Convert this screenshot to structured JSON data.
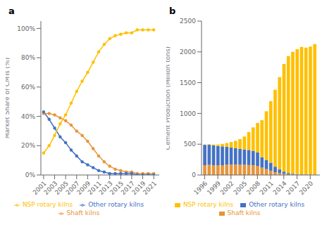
{
  "chart_data": [
    {
      "type": "line",
      "title": "a",
      "x": [
        2001,
        2002,
        2003,
        2004,
        2005,
        2006,
        2007,
        2008,
        2009,
        2010,
        2011,
        2012,
        2013,
        2014,
        2015,
        2016,
        2017,
        2018,
        2019,
        2020,
        2021
      ],
      "series": [
        {
          "name": "Shaft kilns",
          "color": "#E8943A",
          "marker": "circle",
          "values": [
            42,
            42,
            41,
            39,
            37,
            34,
            30,
            27,
            23,
            18,
            13,
            9,
            6,
            4,
            3,
            2,
            2,
            1,
            1,
            1,
            1
          ]
        },
        {
          "name": "Other rotary kilns",
          "color": "#4472C4",
          "marker": "circle",
          "values": [
            43,
            38,
            32,
            26,
            22,
            17,
            13,
            9,
            7,
            5,
            3,
            2,
            1,
            1,
            1,
            1,
            1,
            0,
            0,
            0,
            0
          ]
        },
        {
          "name": "NSP rotary kilns",
          "color": "#FFC000",
          "marker": "circle",
          "values": [
            15,
            20,
            27,
            35,
            41,
            49,
            57,
            64,
            70,
            77,
            84,
            89,
            93,
            95,
            96,
            97,
            97,
            99,
            99,
            99,
            99
          ]
        }
      ],
      "ylabel": "Market Share of CMTs (%)",
      "xlim": [
        2000.5,
        2022
      ],
      "xticks": [
        2001,
        2003,
        2005,
        2007,
        2009,
        2011,
        2013,
        2015,
        2017,
        2019,
        2021
      ],
      "ylim": [
        0,
        105
      ],
      "yticks": [
        {
          "value": 0,
          "label": "0%"
        },
        {
          "value": 20,
          "label": "20%"
        },
        {
          "value": 40,
          "label": "40%"
        },
        {
          "value": 60,
          "label": "60%"
        },
        {
          "value": 80,
          "label": "80%"
        },
        {
          "value": 100,
          "label": "100%"
        }
      ],
      "legend": "bottom"
    },
    {
      "type": "bar",
      "title": "b",
      "stacked": true,
      "x": [
        1996,
        1997,
        1998,
        1999,
        2000,
        2001,
        2002,
        2003,
        2004,
        2005,
        2006,
        2007,
        2008,
        2009,
        2010,
        2011,
        2012,
        2013,
        2014,
        2015,
        2016,
        2017,
        2018,
        2019,
        2020,
        2021
      ],
      "series": [
        {
          "name": "Shaft kilns",
          "color": "#E8943A",
          "values": [
            160,
            165,
            160,
            155,
            160,
            165,
            170,
            170,
            168,
            165,
            162,
            158,
            148,
            120,
            95,
            70,
            45,
            30,
            20,
            12,
            8,
            6,
            5,
            4,
            3,
            3
          ]
        },
        {
          "name": "Other rotary kilns",
          "color": "#4472C4",
          "values": [
            330,
            325,
            320,
            315,
            305,
            295,
            275,
            265,
            255,
            250,
            245,
            235,
            218,
            170,
            150,
            130,
            90,
            60,
            35,
            20,
            12,
            8,
            6,
            5,
            4,
            3
          ]
        },
        {
          "name": "NSP rotary kilns",
          "color": "#FFC000",
          "values": [
            5,
            10,
            15,
            25,
            40,
            60,
            90,
            120,
            160,
            210,
            290,
            380,
            480,
            600,
            790,
            1000,
            1250,
            1500,
            1750,
            1900,
            1980,
            2030,
            2070,
            2060,
            2080,
            2120
          ]
        }
      ],
      "ylabel": "Cement Production (Million tons)",
      "xlim": [
        1995.3,
        2022.2
      ],
      "xticks": [
        1996,
        1999,
        2002,
        2005,
        2008,
        2011,
        2014,
        2017,
        2020
      ],
      "ylim": [
        0,
        2500
      ],
      "yticks": [
        0,
        500,
        1000,
        1500,
        2000,
        2500
      ],
      "legend": "bottom"
    }
  ]
}
